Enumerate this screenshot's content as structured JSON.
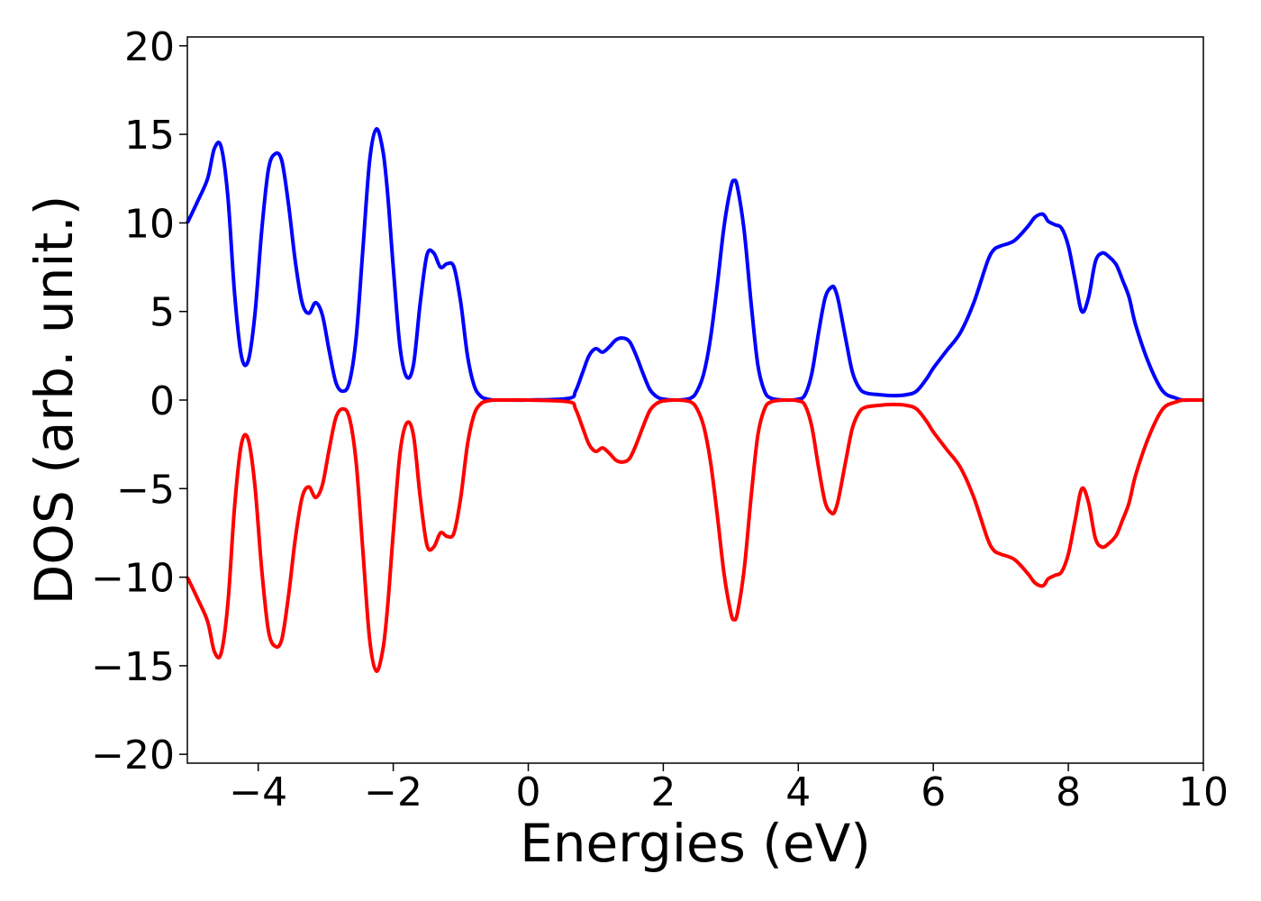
{
  "chart_data": {
    "type": "line",
    "title": "",
    "xlabel": "Energies (eV)",
    "ylabel": "DOS (arb. unit.)",
    "xlim": [
      -5.05,
      10
    ],
    "ylim": [
      -20.5,
      20.5
    ],
    "grid": false,
    "legend": "none",
    "xticks": [
      -4,
      -2,
      0,
      2,
      4,
      6,
      8,
      10
    ],
    "xtick_labels": [
      "−4",
      "−2",
      "0",
      "2",
      "4",
      "6",
      "8",
      "10"
    ],
    "yticks": [
      20,
      15,
      10,
      5,
      0,
      -5,
      -10,
      -15,
      -20
    ],
    "ytick_labels": [
      "20",
      "15",
      "10",
      "5",
      "0",
      "−5",
      "−10",
      "−15",
      "−20"
    ],
    "series": [
      {
        "color": "#0000ff",
        "x": [
          -5.05,
          -4.9,
          -4.75,
          -4.65,
          -4.55,
          -4.45,
          -4.35,
          -4.25,
          -4.15,
          -4.05,
          -3.95,
          -3.85,
          -3.75,
          -3.65,
          -3.55,
          -3.45,
          -3.35,
          -3.25,
          -3.15,
          -3.05,
          -2.95,
          -2.85,
          -2.75,
          -2.65,
          -2.55,
          -2.45,
          -2.35,
          -2.25,
          -2.15,
          -2.08,
          -2.0,
          -1.9,
          -1.8,
          -1.7,
          -1.6,
          -1.5,
          -1.4,
          -1.3,
          -1.2,
          -1.1,
          -1.0,
          -0.9,
          -0.8,
          -0.7,
          -0.6,
          -0.5,
          -0.4,
          0.0,
          0.6,
          0.7,
          0.8,
          0.9,
          1.0,
          1.1,
          1.2,
          1.3,
          1.4,
          1.5,
          1.6,
          1.7,
          1.8,
          1.9,
          2.0,
          2.2,
          2.4,
          2.5,
          2.6,
          2.7,
          2.8,
          2.9,
          3.0,
          3.05,
          3.1,
          3.2,
          3.3,
          3.4,
          3.5,
          3.6,
          3.8,
          4.0,
          4.1,
          4.2,
          4.3,
          4.4,
          4.5,
          4.55,
          4.6,
          4.7,
          4.8,
          4.9,
          5.0,
          5.2,
          5.4,
          5.6,
          5.75,
          5.9,
          6.0,
          6.2,
          6.4,
          6.6,
          6.8,
          6.9,
          7.0,
          7.2,
          7.4,
          7.5,
          7.6,
          7.65,
          7.7,
          7.8,
          7.9,
          8.0,
          8.1,
          8.2,
          8.3,
          8.4,
          8.5,
          8.6,
          8.7,
          8.75,
          8.8,
          8.9,
          9.0,
          9.2,
          9.4,
          9.6,
          9.7,
          9.8,
          10.0
        ],
        "y": [
          10.0,
          11.2,
          12.5,
          14.2,
          14.3,
          11.5,
          6.0,
          2.5,
          2.2,
          4.8,
          9.5,
          13.0,
          13.9,
          13.5,
          11.0,
          7.8,
          5.5,
          4.9,
          5.5,
          4.8,
          2.8,
          1.0,
          0.5,
          1.0,
          3.5,
          8.5,
          13.5,
          15.3,
          14.0,
          11.5,
          7.5,
          3.0,
          1.3,
          2.0,
          5.5,
          8.2,
          8.3,
          7.5,
          7.7,
          7.5,
          5.5,
          2.5,
          0.8,
          0.2,
          0.05,
          0.0,
          0.0,
          0.0,
          0.1,
          0.5,
          1.5,
          2.5,
          2.9,
          2.7,
          3.0,
          3.4,
          3.5,
          3.3,
          2.5,
          1.5,
          0.6,
          0.2,
          0.05,
          0.0,
          0.1,
          0.5,
          1.5,
          3.5,
          6.5,
          9.8,
          12.0,
          12.4,
          12.0,
          9.5,
          5.5,
          2.0,
          0.5,
          0.1,
          0.0,
          0.05,
          0.3,
          1.5,
          3.8,
          5.8,
          6.4,
          6.2,
          5.5,
          3.5,
          1.6,
          0.7,
          0.4,
          0.3,
          0.25,
          0.3,
          0.5,
          1.2,
          1.8,
          2.8,
          3.8,
          5.5,
          7.8,
          8.5,
          8.7,
          9.0,
          9.8,
          10.3,
          10.5,
          10.4,
          10.1,
          9.9,
          9.7,
          8.7,
          6.8,
          5.0,
          5.8,
          7.8,
          8.3,
          8.1,
          7.7,
          7.3,
          6.8,
          5.8,
          4.2,
          2.0,
          0.5,
          0.1,
          0.0,
          0.0,
          0.0
        ]
      },
      {
        "color": "#ff0000",
        "x": [
          -5.05,
          -4.9,
          -4.75,
          -4.65,
          -4.55,
          -4.45,
          -4.35,
          -4.25,
          -4.15,
          -4.05,
          -3.95,
          -3.85,
          -3.75,
          -3.65,
          -3.55,
          -3.45,
          -3.35,
          -3.25,
          -3.15,
          -3.05,
          -2.95,
          -2.85,
          -2.75,
          -2.65,
          -2.55,
          -2.45,
          -2.35,
          -2.25,
          -2.15,
          -2.08,
          -2.0,
          -1.9,
          -1.8,
          -1.7,
          -1.6,
          -1.5,
          -1.4,
          -1.3,
          -1.2,
          -1.1,
          -1.0,
          -0.9,
          -0.8,
          -0.7,
          -0.6,
          -0.5,
          -0.4,
          0.0,
          0.6,
          0.7,
          0.8,
          0.9,
          1.0,
          1.1,
          1.2,
          1.3,
          1.4,
          1.5,
          1.6,
          1.7,
          1.8,
          1.9,
          2.0,
          2.2,
          2.4,
          2.5,
          2.6,
          2.7,
          2.8,
          2.9,
          3.0,
          3.05,
          3.1,
          3.2,
          3.3,
          3.4,
          3.5,
          3.6,
          3.8,
          4.0,
          4.1,
          4.2,
          4.3,
          4.4,
          4.5,
          4.55,
          4.6,
          4.7,
          4.8,
          4.9,
          5.0,
          5.2,
          5.4,
          5.6,
          5.75,
          5.9,
          6.0,
          6.2,
          6.4,
          6.6,
          6.8,
          6.9,
          7.0,
          7.2,
          7.4,
          7.5,
          7.6,
          7.65,
          7.7,
          7.8,
          7.9,
          8.0,
          8.1,
          8.2,
          8.3,
          8.4,
          8.5,
          8.6,
          8.7,
          8.75,
          8.8,
          8.9,
          9.0,
          9.2,
          9.4,
          9.6,
          9.7,
          9.8,
          10.0
        ],
        "y": [
          -10.0,
          -11.2,
          -12.5,
          -14.2,
          -14.3,
          -11.5,
          -6.0,
          -2.5,
          -2.2,
          -4.8,
          -9.5,
          -13.0,
          -13.9,
          -13.5,
          -11.0,
          -7.8,
          -5.5,
          -4.9,
          -5.5,
          -4.8,
          -2.8,
          -1.0,
          -0.5,
          -1.0,
          -3.5,
          -8.5,
          -13.5,
          -15.3,
          -14.0,
          -11.5,
          -7.5,
          -3.0,
          -1.3,
          -2.0,
          -5.5,
          -8.2,
          -8.3,
          -7.5,
          -7.7,
          -7.5,
          -5.5,
          -2.5,
          -0.8,
          -0.2,
          -0.05,
          0.0,
          0.0,
          0.0,
          -0.1,
          -0.5,
          -1.5,
          -2.5,
          -2.9,
          -2.7,
          -3.0,
          -3.4,
          -3.5,
          -3.3,
          -2.5,
          -1.5,
          -0.6,
          -0.2,
          -0.05,
          0.0,
          -0.1,
          -0.5,
          -1.5,
          -3.5,
          -6.5,
          -9.8,
          -12.0,
          -12.4,
          -12.0,
          -9.5,
          -5.5,
          -2.0,
          -0.5,
          -0.1,
          0.0,
          -0.05,
          -0.3,
          -1.5,
          -3.8,
          -5.8,
          -6.4,
          -6.2,
          -5.5,
          -3.5,
          -1.6,
          -0.7,
          -0.4,
          -0.3,
          -0.25,
          -0.3,
          -0.5,
          -1.2,
          -1.8,
          -2.8,
          -3.8,
          -5.5,
          -7.8,
          -8.5,
          -8.7,
          -9.0,
          -9.8,
          -10.3,
          -10.5,
          -10.4,
          -10.1,
          -9.9,
          -9.7,
          -8.7,
          -6.8,
          -5.0,
          -5.8,
          -7.8,
          -8.3,
          -8.1,
          -7.7,
          -7.3,
          -6.8,
          -5.8,
          -4.2,
          -2.0,
          -0.5,
          -0.1,
          0.0,
          0.0,
          0.0
        ]
      }
    ]
  }
}
